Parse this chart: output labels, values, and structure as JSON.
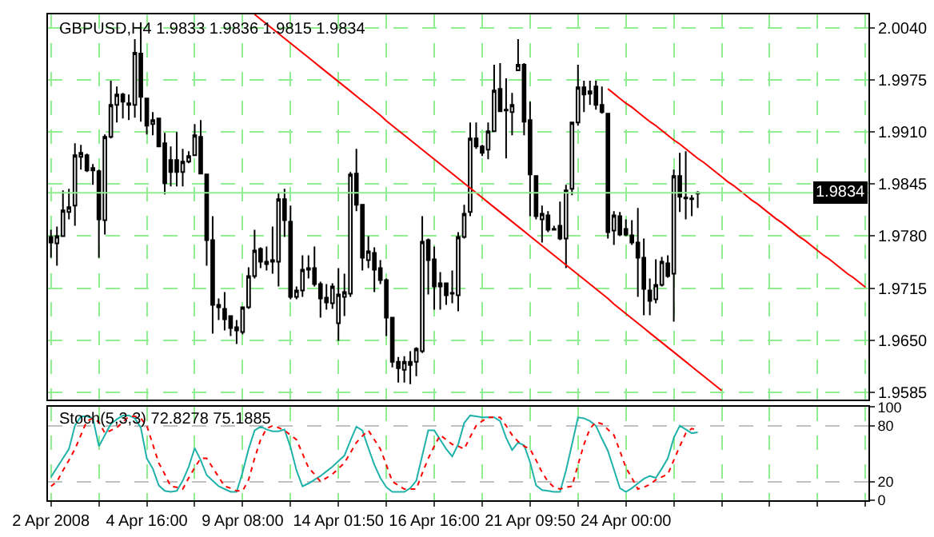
{
  "chart_data": [
    {
      "type": "candlestick",
      "title": "GBPUSD,H4 1.9833 1.9836 1.9815 1.9834",
      "grid": true,
      "tick_labels": "y",
      "ylim": [
        1.9576,
        2.0057
      ],
      "yticks": [
        {
          "value": 2.004,
          "label": "2.0040"
        },
        1.9975,
        {
          "value": 1.991,
          "label": "1.9910"
        },
        1.9845,
        {
          "value": 1.978,
          "label": "1.9780"
        },
        1.9715,
        {
          "value": 1.965,
          "label": "1.9650"
        },
        1.9585
      ],
      "ref_lines": [
        {
          "axis": "y",
          "value": 1.9834,
          "label": "1.9834",
          "color": "#90ee90"
        }
      ],
      "ohlc": [
        [
          1.9779,
          1.9788,
          1.9753,
          1.9772
        ],
        [
          1.9771,
          1.9792,
          1.9743,
          1.978
        ],
        [
          1.978,
          1.9837,
          1.9779,
          1.9812
        ],
        [
          1.981,
          1.9839,
          1.9801,
          1.9816
        ],
        [
          1.9818,
          1.9896,
          1.9793,
          1.9881
        ],
        [
          1.9879,
          1.9894,
          1.9863,
          1.9884
        ],
        [
          1.9881,
          1.9883,
          1.986,
          1.9862
        ],
        [
          1.9865,
          1.987,
          1.9844,
          1.9862
        ],
        [
          1.9861,
          1.9863,
          1.9753,
          1.9801
        ],
        [
          1.98,
          1.9907,
          1.9782,
          1.9904
        ],
        [
          1.9904,
          1.9974,
          1.9902,
          1.9944
        ],
        [
          1.9944,
          1.9967,
          1.9922,
          1.9957
        ],
        [
          1.9957,
          1.9959,
          1.9927,
          1.9948
        ],
        [
          1.9946,
          1.9957,
          1.9925,
          1.9944
        ],
        [
          1.9944,
          2.0026,
          1.9928,
          2.0009
        ],
        [
          2.0008,
          2.0047,
          1.9923,
          1.9954
        ],
        [
          1.9952,
          1.9952,
          1.9907,
          1.9918
        ],
        [
          1.992,
          1.9935,
          1.9906,
          1.9925
        ],
        [
          1.9927,
          1.9928,
          1.9892,
          1.9892
        ],
        [
          1.9896,
          1.9909,
          1.9832,
          1.9846
        ],
        [
          1.9875,
          1.9892,
          1.9842,
          1.986
        ],
        [
          1.9875,
          1.991,
          1.9842,
          1.986
        ],
        [
          1.986,
          1.9889,
          1.9842,
          1.9873
        ],
        [
          1.9873,
          1.9886,
          1.9871,
          1.988
        ],
        [
          1.9881,
          1.992,
          1.988,
          1.9906
        ],
        [
          1.9904,
          1.9925,
          1.9857,
          1.9858
        ],
        [
          1.9857,
          1.9857,
          1.9743,
          1.9775
        ],
        [
          1.9775,
          1.9805,
          1.9658,
          1.9694
        ],
        [
          1.9694,
          1.9702,
          1.9675,
          1.9691
        ],
        [
          1.9689,
          1.971,
          1.9662,
          1.9676
        ],
        [
          1.968,
          1.968,
          1.9655,
          1.9665
        ],
        [
          1.9666,
          1.9675,
          1.9645,
          1.9662
        ],
        [
          1.966,
          1.9691,
          1.9657,
          1.9691
        ],
        [
          1.9691,
          1.9741,
          1.9689,
          1.973
        ],
        [
          1.973,
          1.9788,
          1.9727,
          1.9762
        ],
        [
          1.9764,
          1.9766,
          1.974,
          1.9748
        ],
        [
          1.9748,
          1.9767,
          1.9737,
          1.9745
        ],
        [
          1.975,
          1.9792,
          1.9733,
          1.9748
        ],
        [
          1.9748,
          1.9834,
          1.9717,
          1.9826
        ],
        [
          1.9826,
          1.9839,
          1.9779,
          1.98
        ],
        [
          1.9798,
          1.9818,
          1.9701,
          1.9704
        ],
        [
          1.9704,
          1.9717,
          1.9701,
          1.9712
        ],
        [
          1.9712,
          1.9756,
          1.9704,
          1.9738
        ],
        [
          1.9738,
          1.9756,
          1.9727,
          1.974
        ],
        [
          1.974,
          1.9767,
          1.9717,
          1.972
        ],
        [
          1.972,
          1.9723,
          1.9678,
          1.9702
        ],
        [
          1.9703,
          1.972,
          1.9688,
          1.9697
        ],
        [
          1.9696,
          1.9721,
          1.9689,
          1.9717
        ],
        [
          1.9671,
          1.974,
          1.9649,
          1.9707
        ],
        [
          1.9704,
          1.9733,
          1.968,
          1.971
        ],
        [
          1.9708,
          1.986,
          1.9704,
          1.9857
        ],
        [
          1.9858,
          1.9889,
          1.9811,
          1.9819
        ],
        [
          1.9819,
          1.9819,
          1.9737,
          1.9753
        ],
        [
          1.975,
          1.978,
          1.974,
          1.9761
        ],
        [
          1.9759,
          1.9766,
          1.971,
          1.9738
        ],
        [
          1.974,
          1.975,
          1.972,
          1.9725
        ],
        [
          1.9725,
          1.9727,
          1.9655,
          1.9678
        ],
        [
          1.9678,
          1.9678,
          1.9616,
          1.9623
        ],
        [
          1.9623,
          1.9629,
          1.9597,
          1.9615
        ],
        [
          1.9613,
          1.963,
          1.9597,
          1.9623
        ],
        [
          1.9623,
          1.9636,
          1.9595,
          1.9619
        ],
        [
          1.9623,
          1.9641,
          1.9605,
          1.9639
        ],
        [
          1.9636,
          1.9805,
          1.9634,
          1.9773
        ],
        [
          1.9775,
          1.9777,
          1.9707,
          1.975
        ],
        [
          1.9751,
          1.9767,
          1.9688,
          1.9717
        ],
        [
          1.9721,
          1.9735,
          1.9688,
          1.9717
        ],
        [
          1.9721,
          1.9721,
          1.9694,
          1.9706
        ],
        [
          1.9709,
          1.9737,
          1.9696,
          1.9708
        ],
        [
          1.9706,
          1.9785,
          1.9686,
          1.9779
        ],
        [
          1.9779,
          1.9819,
          1.9777,
          1.9808
        ],
        [
          1.981,
          1.9922,
          1.9805,
          1.9902
        ],
        [
          1.9902,
          1.9922,
          1.9889,
          1.9892
        ],
        [
          1.9892,
          1.9894,
          1.988,
          1.9884
        ],
        [
          1.9888,
          1.9922,
          1.9876,
          1.9911
        ],
        [
          1.9911,
          1.9994,
          1.991,
          1.9962
        ],
        [
          1.9964,
          1.9996,
          1.9936,
          1.9936
        ],
        [
          1.9938,
          1.9977,
          1.9877,
          1.9937
        ],
        [
          1.9935,
          1.9959,
          1.9906,
          1.9944
        ],
        [
          1.9987,
          2.0026,
          1.9987,
          1.9994
        ],
        [
          1.9994,
          1.9996,
          1.9906,
          1.9923
        ],
        [
          1.9925,
          1.9948,
          1.9805,
          1.9857
        ],
        [
          1.9855,
          1.9855,
          1.9801,
          1.9805
        ],
        [
          1.9801,
          1.9818,
          1.9772,
          1.9808
        ],
        [
          1.9806,
          1.9811,
          1.9785,
          1.9788
        ],
        [
          1.9789,
          1.9793,
          1.9787,
          1.9788
        ],
        [
          1.9793,
          1.9823,
          1.9775,
          1.9777
        ],
        [
          1.9777,
          1.9844,
          1.974,
          1.9837
        ],
        [
          1.9839,
          1.9923,
          1.9831,
          1.9922
        ],
        [
          1.9922,
          1.9994,
          1.9918,
          1.9966
        ],
        [
          1.9966,
          1.9974,
          1.9935,
          1.9957
        ],
        [
          1.9961,
          1.9974,
          1.9944,
          1.9958
        ],
        [
          1.9967,
          1.9974,
          1.9938,
          1.9944
        ],
        [
          1.9944,
          1.9967,
          1.9933,
          1.9935
        ],
        [
          1.9933,
          1.9933,
          1.9777,
          1.9785
        ],
        [
          1.9787,
          1.9811,
          1.9769,
          1.9806
        ],
        [
          1.9805,
          1.981,
          1.978,
          1.9782
        ],
        [
          1.9789,
          1.9801,
          1.978,
          1.9782
        ],
        [
          1.9781,
          1.98,
          1.9769,
          1.9772
        ],
        [
          1.9772,
          1.9815,
          1.9704,
          1.9753
        ],
        [
          1.9753,
          1.9777,
          1.9681,
          1.9714
        ],
        [
          1.9712,
          1.9727,
          1.9681,
          1.9699
        ],
        [
          1.9701,
          1.9751,
          1.9696,
          1.9719
        ],
        [
          1.9719,
          1.9754,
          1.9717,
          1.9748
        ],
        [
          1.9746,
          1.9756,
          1.9728,
          1.973
        ],
        [
          1.9733,
          1.9863,
          1.9673,
          1.9855
        ],
        [
          1.9855,
          1.9884,
          1.981,
          1.9829
        ],
        [
          1.9828,
          1.9886,
          1.9801,
          1.9827
        ],
        [
          1.9827,
          1.9831,
          1.9805,
          1.9826
        ],
        [
          1.9833,
          1.9836,
          1.9815,
          1.9834
        ],
        null,
        null,
        null,
        null,
        null,
        null,
        null,
        null,
        null,
        null,
        null,
        null,
        null,
        null,
        null,
        null,
        null,
        null,
        null,
        null,
        null,
        null,
        null,
        null,
        null,
        null,
        null,
        null
      ],
      "series": [
        {
          "type": "line",
          "color": "#ff0000",
          "values": [
            null,
            null,
            null,
            null,
            null,
            null,
            null,
            null,
            null,
            null,
            null,
            null,
            null,
            null,
            null,
            null,
            null,
            null,
            null,
            null,
            null,
            null,
            null,
            null,
            null,
            null,
            null,
            null,
            null,
            null,
            null,
            null,
            null,
            null,
            2.0057,
            2.0051,
            2.0045,
            2.0039,
            2.0033,
            2.0027,
            2.0021,
            2.0015,
            2.0009,
            2.0003,
            1.9997,
            1.9991,
            1.9985,
            1.9979,
            1.9973,
            1.9967,
            1.9961,
            1.9955,
            1.9949,
            1.9943,
            1.9937,
            1.9931,
            1.9924,
            1.9918,
            1.9912,
            1.9906,
            1.99,
            1.9894,
            1.9888,
            1.9882,
            1.9876,
            1.987,
            1.9864,
            1.9858,
            1.9852,
            1.9846,
            1.984,
            1.9834,
            1.9828,
            1.9822,
            1.9816,
            1.981,
            1.9804,
            1.9798,
            1.9792,
            1.9786,
            1.978,
            1.9774,
            1.9768,
            1.9762,
            1.9756,
            1.975,
            1.9744,
            1.9738,
            1.9732,
            1.9726,
            1.972,
            1.9714,
            1.9708,
            1.9702,
            1.9695,
            1.9689,
            1.9683,
            1.9677,
            1.9671,
            1.9665,
            1.9659,
            1.9653,
            1.9647,
            1.9641,
            1.9635,
            1.9629,
            1.9623,
            1.9617,
            1.9611,
            1.9605,
            1.9599,
            1.9593,
            1.9587,
            null,
            null,
            null,
            null,
            null,
            null,
            null,
            null,
            null,
            null,
            null,
            null,
            null,
            null,
            null,
            null,
            null,
            null,
            null,
            null,
            null,
            null,
            null,
            null
          ]
        },
        {
          "type": "line",
          "color": "#ff0000",
          "values": [
            null,
            null,
            null,
            null,
            null,
            null,
            null,
            null,
            null,
            null,
            null,
            null,
            null,
            null,
            null,
            null,
            null,
            null,
            null,
            null,
            null,
            null,
            null,
            null,
            null,
            null,
            null,
            null,
            null,
            null,
            null,
            null,
            null,
            null,
            null,
            null,
            null,
            null,
            null,
            null,
            null,
            null,
            null,
            null,
            null,
            null,
            null,
            null,
            null,
            null,
            null,
            null,
            null,
            null,
            null,
            null,
            null,
            null,
            null,
            null,
            null,
            null,
            null,
            null,
            null,
            null,
            null,
            null,
            null,
            null,
            null,
            null,
            null,
            null,
            null,
            null,
            null,
            null,
            null,
            null,
            null,
            null,
            null,
            null,
            null,
            null,
            null,
            null,
            null,
            null,
            null,
            null,
            null,
            1.9964,
            1.9958,
            1.9952,
            1.9946,
            1.9941,
            1.9935,
            1.9929,
            1.9923,
            1.9918,
            1.9912,
            1.9906,
            1.99,
            1.9895,
            1.9889,
            1.9883,
            1.9877,
            1.9872,
            1.9866,
            1.986,
            1.9854,
            1.9848,
            1.9843,
            1.9837,
            1.9831,
            1.9825,
            1.982,
            1.9814,
            1.9808,
            1.9802,
            1.9797,
            1.9791,
            1.9785,
            1.9779,
            1.9774,
            1.9768,
            1.9762,
            1.9756,
            1.9751,
            1.9745,
            1.9739,
            1.9733,
            1.9728,
            1.9722,
            1.9716
          ]
        }
      ]
    },
    {
      "type": "line",
      "title": "Stoch(5,3,3) 72.8278 75.1885",
      "grid": true,
      "categories": [
        "2 Apr 2008",
        null,
        null,
        null,
        null,
        null,
        null,
        null,
        null,
        null,
        null,
        null,
        null,
        null,
        null,
        null,
        "4 Apr 16:00",
        null,
        null,
        null,
        null,
        null,
        null,
        null,
        null,
        null,
        null,
        null,
        null,
        null,
        null,
        null,
        "9 Apr 08:00",
        null,
        null,
        null,
        null,
        null,
        null,
        null,
        null,
        null,
        null,
        null,
        null,
        null,
        null,
        null,
        "14 Apr 01:50",
        null,
        null,
        null,
        null,
        null,
        null,
        null,
        null,
        null,
        null,
        null,
        null,
        null,
        null,
        null,
        "16 Apr 16:00",
        null,
        null,
        null,
        null,
        null,
        null,
        null,
        null,
        null,
        null,
        null,
        null,
        null,
        null,
        null,
        "21 Apr 09:50",
        null,
        null,
        null,
        null,
        null,
        null,
        null,
        null,
        null,
        null,
        null,
        null,
        null,
        null,
        null,
        "24 Apr 00:00",
        null,
        null,
        null,
        null,
        null,
        null,
        null,
        null,
        null,
        null,
        null,
        null,
        null,
        null,
        null,
        null,
        null,
        null,
        null,
        null,
        null,
        null,
        null,
        null,
        null,
        null,
        null,
        null,
        null,
        null,
        null,
        null,
        null,
        null,
        null,
        null,
        null,
        null,
        null,
        null
      ],
      "ylim": [
        0,
        100
      ],
      "yticks": [
        100,
        80,
        20,
        0
      ],
      "series": [
        {
          "color": "#20b2aa",
          "line_style": "solid",
          "values": [
            25,
            35,
            45,
            55,
            80,
            90,
            90,
            88,
            58,
            70,
            82,
            87,
            91,
            91,
            88,
            78,
            45,
            34,
            16,
            10,
            9,
            10,
            21,
            36,
            56,
            43,
            27,
            21,
            15,
            12,
            9,
            9,
            30,
            55,
            75,
            79,
            76,
            74,
            74,
            76,
            57,
            32,
            15,
            18,
            22,
            26,
            31,
            36,
            42,
            48,
            64,
            79,
            75,
            56,
            38,
            24,
            14,
            9,
            9,
            9,
            13,
            21,
            48,
            75,
            75,
            65,
            55,
            47,
            60,
            83,
            91,
            90,
            89,
            89,
            89,
            85,
            67,
            54,
            62,
            59,
            41,
            16,
            11,
            10,
            9,
            9,
            32,
            60,
            89,
            88,
            85,
            80,
            66,
            53,
            33,
            13,
            9,
            13,
            18,
            23,
            26,
            24,
            34,
            45,
            67,
            80,
            76,
            72,
            73,
            null,
            null,
            null,
            null,
            null,
            null,
            null,
            null,
            null,
            null,
            null,
            null,
            null,
            null,
            null,
            null,
            null,
            null,
            null,
            null,
            null,
            null,
            null,
            null,
            null,
            null,
            null,
            null
          ]
        },
        {
          "color": "#ff0000",
          "line_style": "dotted",
          "values": [
            15,
            20,
            32,
            43,
            55,
            70,
            85,
            88,
            84,
            72,
            75,
            78,
            84,
            90,
            90,
            88,
            80,
            60,
            40,
            28,
            15,
            14,
            12,
            24,
            35,
            45,
            45,
            35,
            25,
            15,
            13,
            10,
            10,
            22,
            45,
            65,
            77,
            80,
            78,
            75,
            70,
            65,
            50,
            35,
            28,
            20,
            24,
            28,
            34,
            40,
            51,
            62,
            69,
            75,
            65,
            55,
            38,
            20,
            16,
            12,
            12,
            12,
            29,
            45,
            58,
            70,
            65,
            60,
            58,
            55,
            68,
            80,
            85,
            89,
            89,
            89,
            80,
            70,
            63,
            58,
            55,
            43,
            30,
            20,
            14,
            12,
            14,
            15,
            38,
            60,
            77,
            84,
            82,
            76,
            70,
            53,
            35,
            24,
            12,
            14,
            17,
            22,
            25,
            28,
            43,
            58,
            72,
            77,
            75,
            null,
            null,
            null,
            null,
            null,
            null,
            null,
            null,
            null,
            null,
            null,
            null,
            null,
            null,
            null,
            null,
            null,
            null,
            null,
            null,
            null,
            null,
            null,
            null,
            null,
            null,
            null,
            null
          ]
        }
      ]
    }
  ]
}
